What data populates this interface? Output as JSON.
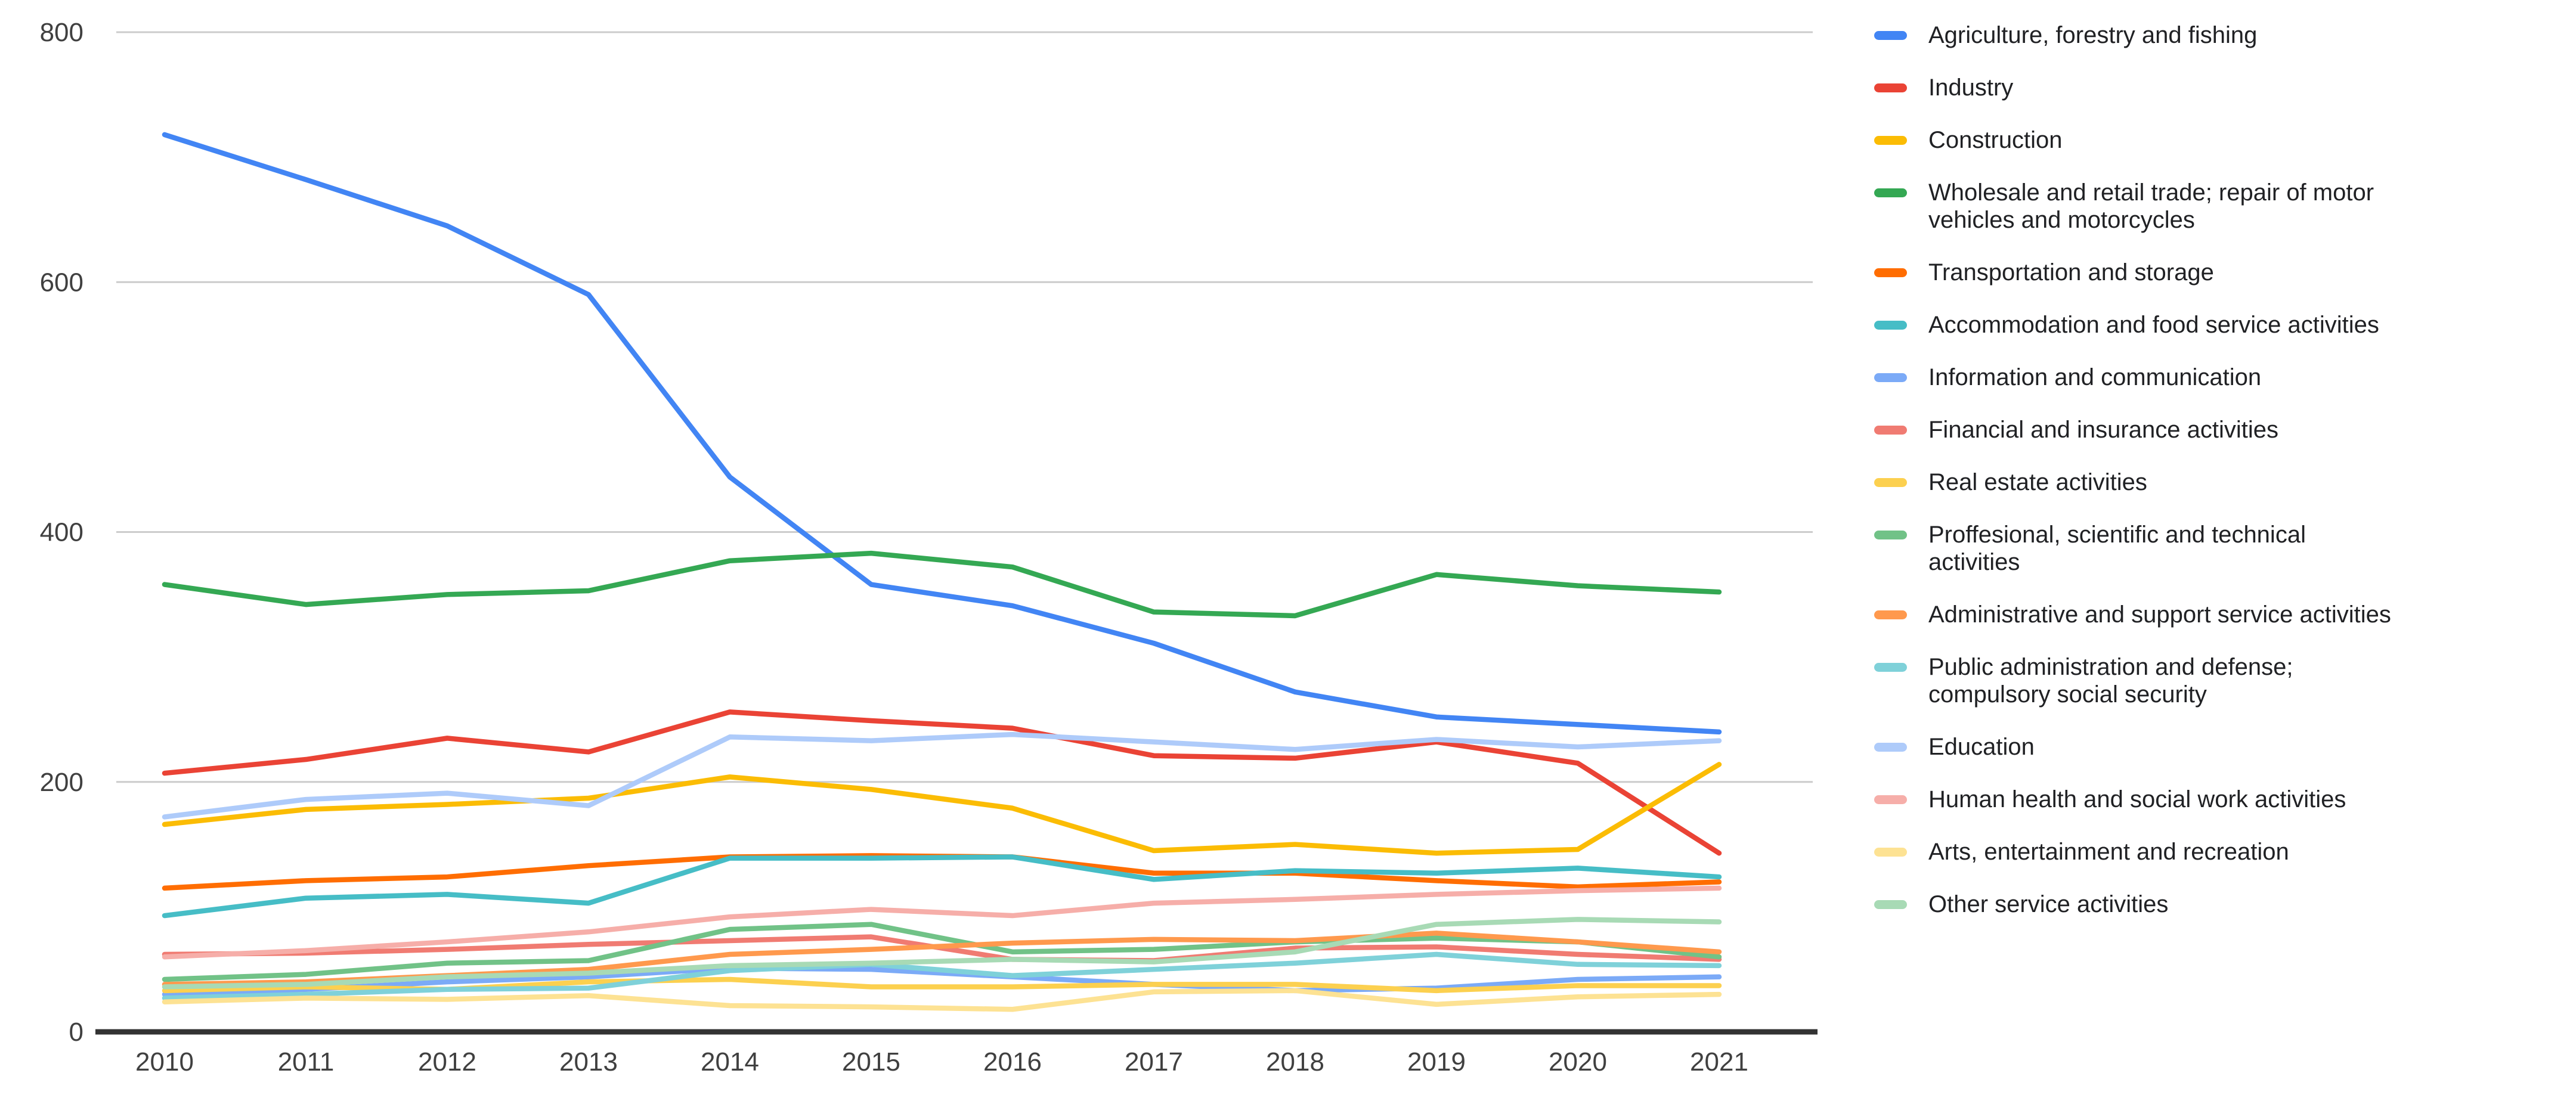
{
  "chart_data": {
    "type": "line",
    "x": [
      2010,
      2011,
      2012,
      2013,
      2014,
      2015,
      2016,
      2017,
      2018,
      2019,
      2020,
      2021
    ],
    "ylim": [
      0,
      800
    ],
    "yticks": [
      0,
      200,
      400,
      600,
      800
    ],
    "grid": true,
    "legend_position": "right",
    "title": "",
    "xlabel": "",
    "ylabel": "",
    "series": [
      {
        "name": "Agriculture, forestry and fishing",
        "color": "#4285F4",
        "values": [
          718,
          682,
          645,
          590,
          444,
          358,
          341,
          311,
          272,
          252,
          246,
          240
        ]
      },
      {
        "name": "Industry",
        "color": "#EA4335",
        "values": [
          207,
          218,
          235,
          224,
          256,
          249,
          243,
          221,
          219,
          232,
          215,
          143
        ]
      },
      {
        "name": "Construction",
        "color": "#FBBC04",
        "values": [
          166,
          178,
          182,
          187,
          204,
          194,
          179,
          145,
          150,
          143,
          146,
          214
        ]
      },
      {
        "name": "Wholesale and retail trade; repair of motor vehicles and motorcycles",
        "color": "#34A853",
        "values": [
          358,
          342,
          350,
          353,
          377,
          383,
          372,
          336,
          333,
          366,
          357,
          352
        ]
      },
      {
        "name": "Transportation and storage",
        "color": "#FF6D01",
        "values": [
          115,
          121,
          124,
          133,
          140,
          141,
          140,
          127,
          127,
          121,
          116,
          120
        ]
      },
      {
        "name": "Accommodation and food service activities",
        "color": "#46BDC6",
        "values": [
          93,
          107,
          110,
          103,
          139,
          139,
          140,
          122,
          129,
          127,
          131,
          124
        ]
      },
      {
        "name": "Information and communication",
        "color": "#7BAAF7",
        "values": [
          30,
          34,
          40,
          44,
          51,
          50,
          44,
          38,
          33,
          35,
          42,
          44
        ]
      },
      {
        "name": "Financial and insurance activities",
        "color": "#F07B72",
        "values": [
          62,
          63,
          66,
          70,
          73,
          76,
          58,
          57,
          67,
          68,
          62,
          58
        ]
      },
      {
        "name": "Real estate activities",
        "color": "#FCD04F",
        "values": [
          33,
          36,
          34,
          40,
          42,
          36,
          36,
          38,
          38,
          33,
          37,
          37
        ]
      },
      {
        "name": "Proffesional, scientific and technical activities",
        "color": "#71C287",
        "values": [
          42,
          46,
          55,
          57,
          82,
          86,
          64,
          66,
          72,
          75,
          72,
          60
        ]
      },
      {
        "name": "Administrative and support service activities",
        "color": "#FF994D",
        "values": [
          38,
          40,
          45,
          50,
          62,
          66,
          71,
          74,
          73,
          79,
          72,
          64
        ]
      },
      {
        "name": "Public administration and defense; compulsory social security",
        "color": "#7FD1D9",
        "values": [
          27,
          30,
          34,
          35,
          49,
          54,
          45,
          50,
          55,
          62,
          54,
          53
        ]
      },
      {
        "name": "Education",
        "color": "#AECBFA",
        "values": [
          172,
          186,
          191,
          181,
          236,
          233,
          238,
          232,
          226,
          234,
          228,
          233
        ]
      },
      {
        "name": "Human health and social work activities",
        "color": "#F6AEA9",
        "values": [
          60,
          65,
          72,
          80,
          92,
          98,
          93,
          103,
          106,
          110,
          113,
          115
        ]
      },
      {
        "name": "Arts, entertainment and recreation",
        "color": "#FDE293",
        "values": [
          24,
          27,
          26,
          29,
          21,
          20,
          18,
          32,
          33,
          22,
          28,
          30
        ]
      },
      {
        "name": "Other service activities",
        "color": "#A8DAB5",
        "values": [
          36,
          38,
          44,
          47,
          53,
          55,
          58,
          56,
          64,
          86,
          90,
          88
        ]
      }
    ]
  },
  "legend": {
    "items": [
      {
        "lines": [
          "Agriculture, forestry and fishing"
        ]
      },
      {
        "lines": [
          "Industry"
        ]
      },
      {
        "lines": [
          "Construction"
        ]
      },
      {
        "lines": [
          "Wholesale and retail trade; repair of motor",
          "vehicles and motorcycles"
        ]
      },
      {
        "lines": [
          "Transportation and storage"
        ]
      },
      {
        "lines": [
          "Accommodation and food service activities"
        ]
      },
      {
        "lines": [
          "Information and communication"
        ]
      },
      {
        "lines": [
          "Financial and insurance activities"
        ]
      },
      {
        "lines": [
          "Real estate activities"
        ]
      },
      {
        "lines": [
          "Proffesional, scientific and technical",
          "activities"
        ]
      },
      {
        "lines": [
          "Administrative and support service activities"
        ]
      },
      {
        "lines": [
          "Public administration and defense;",
          "compulsory social security"
        ]
      },
      {
        "lines": [
          "Education"
        ]
      },
      {
        "lines": [
          "Human health and social work activities"
        ]
      },
      {
        "lines": [
          "Arts, entertainment and recreation"
        ]
      },
      {
        "lines": [
          "Other service activities"
        ]
      }
    ]
  },
  "axis_colors": {
    "tick_label": "#404040",
    "gridline": "#cccccc",
    "baseline": "#333333"
  }
}
